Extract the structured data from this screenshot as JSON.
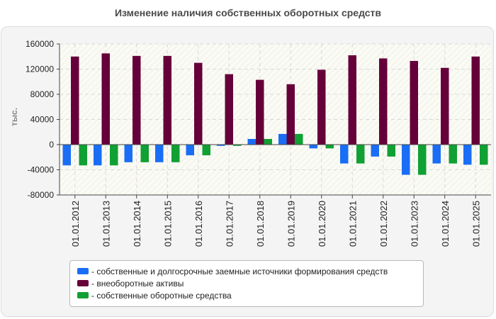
{
  "title": "Изменение наличия собственных оборотных средств",
  "chart_data": {
    "type": "bar",
    "ylabel": "тыс.",
    "ylim": [
      -80000,
      160000
    ],
    "yticks": [
      160000,
      120000,
      80000,
      40000,
      0,
      -40000,
      -80000
    ],
    "categories": [
      "01.01.2012",
      "01.01.2013",
      "01.01.2014",
      "01.01.2015",
      "01.01.2016",
      "01.01.2017",
      "01.01.2018",
      "01.01.2019",
      "01.01.2020",
      "01.01.2021",
      "01.01.2022",
      "01.01.2023",
      "01.01.2024",
      "01.01.2025"
    ],
    "series": [
      {
        "name": "- собственные и долгосрочные заемные источники формирования средств",
        "color": "#1a6ef5",
        "values": [
          -33000,
          -33000,
          -28000,
          -28000,
          -17000,
          -2000,
          9000,
          17000,
          -6000,
          -30000,
          -19000,
          -48000,
          -30000,
          -32000
        ]
      },
      {
        "name": "- внеоборотные активы",
        "color": "#66003a",
        "values": [
          140000,
          145000,
          141000,
          141000,
          130000,
          112000,
          103000,
          96000,
          119000,
          142000,
          137000,
          133000,
          122000,
          140000
        ]
      },
      {
        "name": "- собственные оборотные средства",
        "color": "#10a033",
        "values": [
          -33000,
          -33000,
          -28000,
          -28000,
          -17000,
          -2000,
          9000,
          17000,
          -6000,
          -30000,
          -19000,
          -48000,
          -30000,
          -32000
        ]
      }
    ],
    "grid": true,
    "legend_position": "bottom"
  }
}
